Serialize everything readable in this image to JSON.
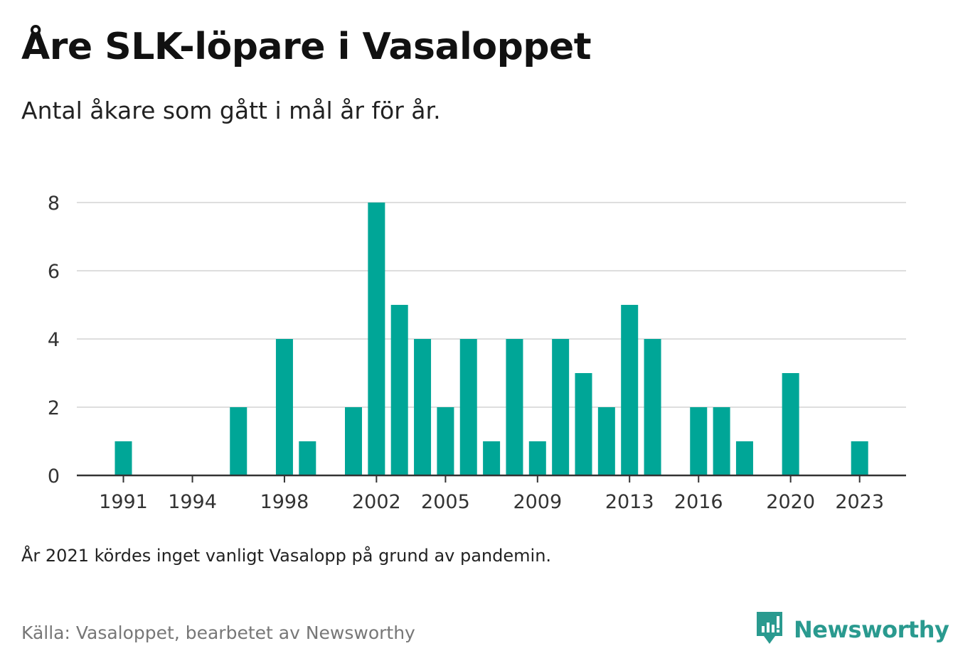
{
  "title": "Åre SLK-löpare i Vasaloppet",
  "subtitle": "Antal åkare som gått i mål år för år.",
  "note": "År 2021 kördes inget vanligt Vasalopp på grund av pandemin.",
  "source": "Källa: Vasaloppet, bearbetet av Newsworthy",
  "brand": {
    "name": "Newsworthy",
    "icon": "newsworthy-logo-icon",
    "color": "#2a9a8f"
  },
  "colors": {
    "bar": "#00a697",
    "grid": "#dedede",
    "axis": "#333333"
  },
  "chart_data": {
    "type": "bar",
    "x": [
      1991,
      1992,
      1993,
      1994,
      1995,
      1996,
      1997,
      1998,
      1999,
      2000,
      2001,
      2002,
      2003,
      2004,
      2005,
      2006,
      2007,
      2008,
      2009,
      2010,
      2011,
      2012,
      2013,
      2014,
      2015,
      2016,
      2017,
      2018,
      2019,
      2020,
      2021,
      2022,
      2023
    ],
    "values": [
      1,
      0,
      0,
      0,
      0,
      2,
      0,
      4,
      1,
      0,
      2,
      8,
      5,
      4,
      2,
      4,
      1,
      4,
      1,
      4,
      3,
      2,
      5,
      4,
      0,
      2,
      2,
      1,
      0,
      3,
      0,
      0,
      1
    ],
    "xticks": [
      1991,
      1994,
      1998,
      2002,
      2005,
      2009,
      2013,
      2016,
      2020,
      2023
    ],
    "yticks": [
      0,
      2,
      4,
      6,
      8
    ],
    "ylim": [
      0,
      8
    ],
    "xlabel": "",
    "ylabel": "",
    "grid": true,
    "legend": "none"
  }
}
